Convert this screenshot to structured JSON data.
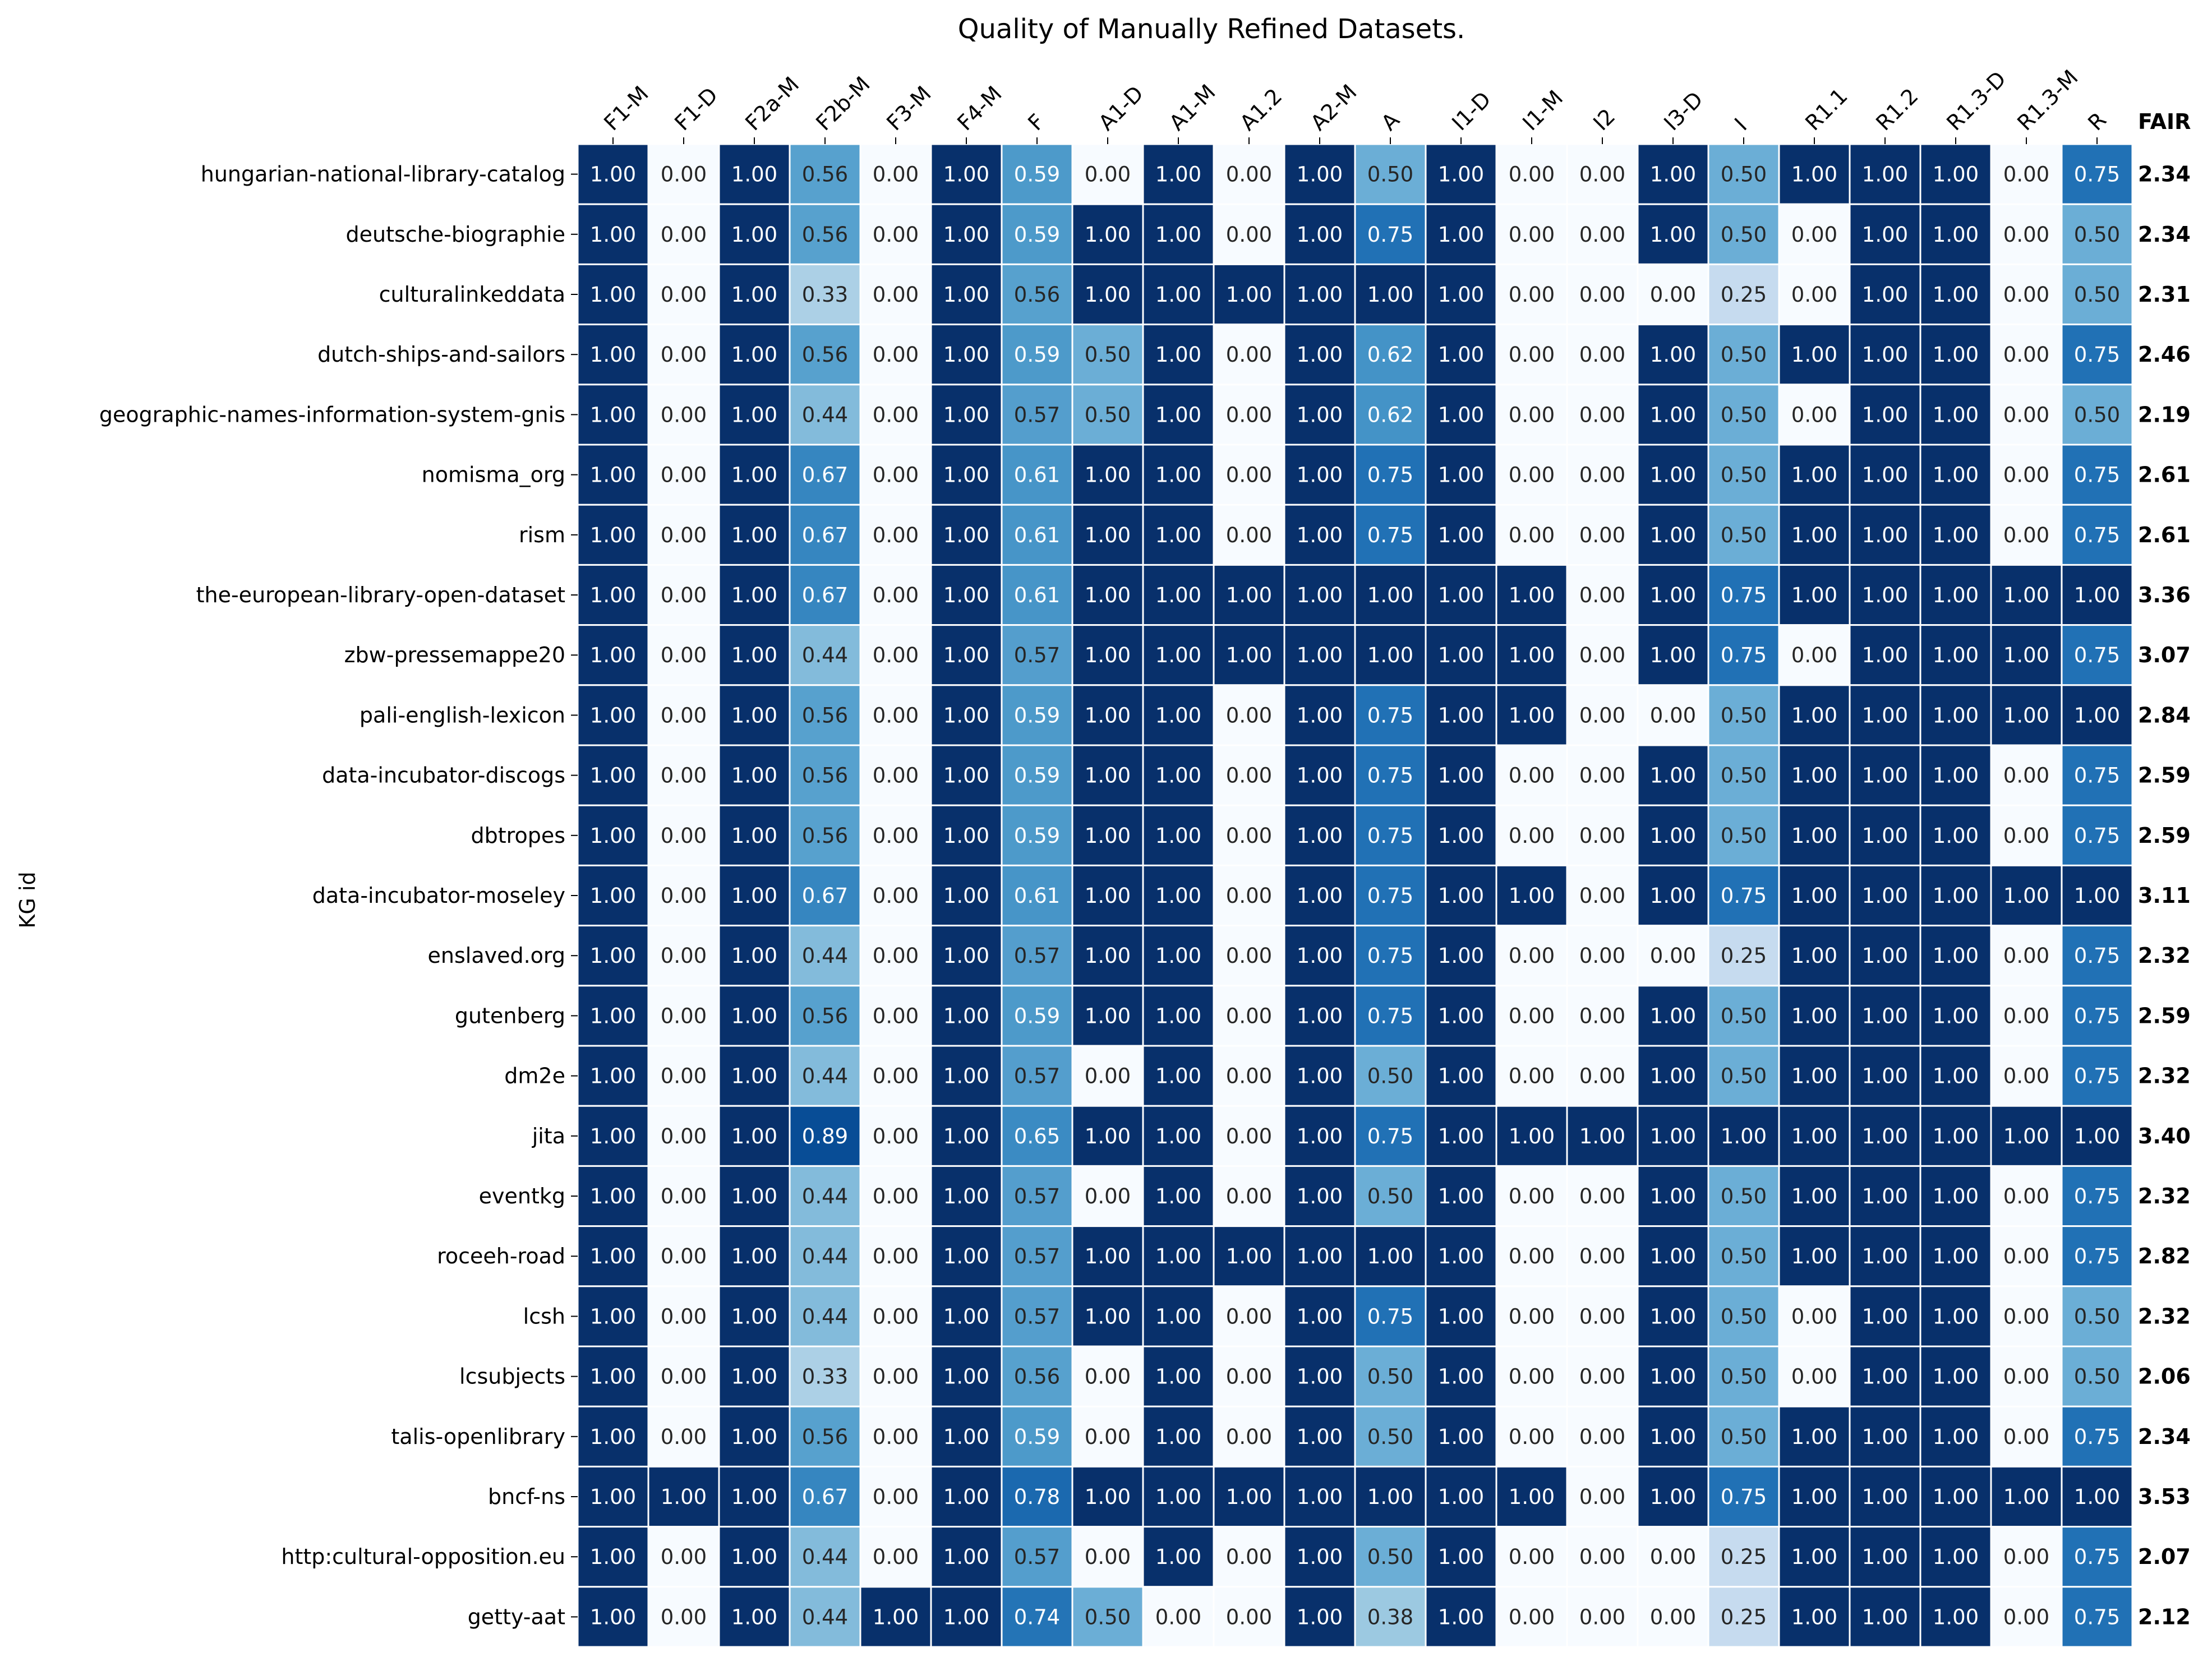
{
  "chart_data": {
    "type": "heatmap",
    "title": "Quality of Manually Refined Datasets.",
    "ylabel": "KG id",
    "fair_header": "FAIR",
    "colormap": "Blues",
    "vmin": 0,
    "vmax": 1,
    "columns": [
      "F1-M",
      "F1-D",
      "F2a-M",
      "F2b-M",
      "F3-M",
      "F4-M",
      "F",
      "A1-D",
      "A1-M",
      "A1.2",
      "A2-M",
      "A",
      "I1-D",
      "I1-M",
      "I2",
      "I3-D",
      "I",
      "R1.1",
      "R1.2",
      "R1.3-D",
      "R1.3-M",
      "R"
    ],
    "rows": [
      {
        "name": "hungarian-national-library-catalog",
        "values": [
          1.0,
          0.0,
          1.0,
          0.56,
          0.0,
          1.0,
          0.59,
          0.0,
          1.0,
          0.0,
          1.0,
          0.5,
          1.0,
          0.0,
          0.0,
          1.0,
          0.5,
          1.0,
          1.0,
          1.0,
          0.0,
          0.75
        ],
        "fair": 2.34
      },
      {
        "name": "deutsche-biographie",
        "values": [
          1.0,
          0.0,
          1.0,
          0.56,
          0.0,
          1.0,
          0.59,
          1.0,
          1.0,
          0.0,
          1.0,
          0.75,
          1.0,
          0.0,
          0.0,
          1.0,
          0.5,
          0.0,
          1.0,
          1.0,
          0.0,
          0.5
        ],
        "fair": 2.34
      },
      {
        "name": "culturalinkeddata",
        "values": [
          1.0,
          0.0,
          1.0,
          0.33,
          0.0,
          1.0,
          0.56,
          1.0,
          1.0,
          1.0,
          1.0,
          1.0,
          1.0,
          0.0,
          0.0,
          0.0,
          0.25,
          0.0,
          1.0,
          1.0,
          0.0,
          0.5
        ],
        "fair": 2.31
      },
      {
        "name": "dutch-ships-and-sailors",
        "values": [
          1.0,
          0.0,
          1.0,
          0.56,
          0.0,
          1.0,
          0.59,
          0.5,
          1.0,
          0.0,
          1.0,
          0.62,
          1.0,
          0.0,
          0.0,
          1.0,
          0.5,
          1.0,
          1.0,
          1.0,
          0.0,
          0.75
        ],
        "fair": 2.46
      },
      {
        "name": "geographic-names-information-system-gnis",
        "values": [
          1.0,
          0.0,
          1.0,
          0.44,
          0.0,
          1.0,
          0.57,
          0.5,
          1.0,
          0.0,
          1.0,
          0.62,
          1.0,
          0.0,
          0.0,
          1.0,
          0.5,
          0.0,
          1.0,
          1.0,
          0.0,
          0.5
        ],
        "fair": 2.19
      },
      {
        "name": "nomisma_org",
        "values": [
          1.0,
          0.0,
          1.0,
          0.67,
          0.0,
          1.0,
          0.61,
          1.0,
          1.0,
          0.0,
          1.0,
          0.75,
          1.0,
          0.0,
          0.0,
          1.0,
          0.5,
          1.0,
          1.0,
          1.0,
          0.0,
          0.75
        ],
        "fair": 2.61
      },
      {
        "name": "rism",
        "values": [
          1.0,
          0.0,
          1.0,
          0.67,
          0.0,
          1.0,
          0.61,
          1.0,
          1.0,
          0.0,
          1.0,
          0.75,
          1.0,
          0.0,
          0.0,
          1.0,
          0.5,
          1.0,
          1.0,
          1.0,
          0.0,
          0.75
        ],
        "fair": 2.61
      },
      {
        "name": "the-european-library-open-dataset",
        "values": [
          1.0,
          0.0,
          1.0,
          0.67,
          0.0,
          1.0,
          0.61,
          1.0,
          1.0,
          1.0,
          1.0,
          1.0,
          1.0,
          1.0,
          0.0,
          1.0,
          0.75,
          1.0,
          1.0,
          1.0,
          1.0,
          1.0
        ],
        "fair": 3.36
      },
      {
        "name": "zbw-pressemappe20",
        "values": [
          1.0,
          0.0,
          1.0,
          0.44,
          0.0,
          1.0,
          0.57,
          1.0,
          1.0,
          1.0,
          1.0,
          1.0,
          1.0,
          1.0,
          0.0,
          1.0,
          0.75,
          0.0,
          1.0,
          1.0,
          1.0,
          0.75
        ],
        "fair": 3.07
      },
      {
        "name": "pali-english-lexicon",
        "values": [
          1.0,
          0.0,
          1.0,
          0.56,
          0.0,
          1.0,
          0.59,
          1.0,
          1.0,
          0.0,
          1.0,
          0.75,
          1.0,
          1.0,
          0.0,
          0.0,
          0.5,
          1.0,
          1.0,
          1.0,
          1.0,
          1.0
        ],
        "fair": 2.84
      },
      {
        "name": "data-incubator-discogs",
        "values": [
          1.0,
          0.0,
          1.0,
          0.56,
          0.0,
          1.0,
          0.59,
          1.0,
          1.0,
          0.0,
          1.0,
          0.75,
          1.0,
          0.0,
          0.0,
          1.0,
          0.5,
          1.0,
          1.0,
          1.0,
          0.0,
          0.75
        ],
        "fair": 2.59
      },
      {
        "name": "dbtropes",
        "values": [
          1.0,
          0.0,
          1.0,
          0.56,
          0.0,
          1.0,
          0.59,
          1.0,
          1.0,
          0.0,
          1.0,
          0.75,
          1.0,
          0.0,
          0.0,
          1.0,
          0.5,
          1.0,
          1.0,
          1.0,
          0.0,
          0.75
        ],
        "fair": 2.59
      },
      {
        "name": "data-incubator-moseley",
        "values": [
          1.0,
          0.0,
          1.0,
          0.67,
          0.0,
          1.0,
          0.61,
          1.0,
          1.0,
          0.0,
          1.0,
          0.75,
          1.0,
          1.0,
          0.0,
          1.0,
          0.75,
          1.0,
          1.0,
          1.0,
          1.0,
          1.0
        ],
        "fair": 3.11
      },
      {
        "name": "enslaved.org",
        "values": [
          1.0,
          0.0,
          1.0,
          0.44,
          0.0,
          1.0,
          0.57,
          1.0,
          1.0,
          0.0,
          1.0,
          0.75,
          1.0,
          0.0,
          0.0,
          0.0,
          0.25,
          1.0,
          1.0,
          1.0,
          0.0,
          0.75
        ],
        "fair": 2.32
      },
      {
        "name": "gutenberg",
        "values": [
          1.0,
          0.0,
          1.0,
          0.56,
          0.0,
          1.0,
          0.59,
          1.0,
          1.0,
          0.0,
          1.0,
          0.75,
          1.0,
          0.0,
          0.0,
          1.0,
          0.5,
          1.0,
          1.0,
          1.0,
          0.0,
          0.75
        ],
        "fair": 2.59
      },
      {
        "name": "dm2e",
        "values": [
          1.0,
          0.0,
          1.0,
          0.44,
          0.0,
          1.0,
          0.57,
          0.0,
          1.0,
          0.0,
          1.0,
          0.5,
          1.0,
          0.0,
          0.0,
          1.0,
          0.5,
          1.0,
          1.0,
          1.0,
          0.0,
          0.75
        ],
        "fair": 2.32
      },
      {
        "name": "jita",
        "values": [
          1.0,
          0.0,
          1.0,
          0.89,
          0.0,
          1.0,
          0.65,
          1.0,
          1.0,
          0.0,
          1.0,
          0.75,
          1.0,
          1.0,
          1.0,
          1.0,
          1.0,
          1.0,
          1.0,
          1.0,
          1.0,
          1.0
        ],
        "fair": 3.4
      },
      {
        "name": "eventkg",
        "values": [
          1.0,
          0.0,
          1.0,
          0.44,
          0.0,
          1.0,
          0.57,
          0.0,
          1.0,
          0.0,
          1.0,
          0.5,
          1.0,
          0.0,
          0.0,
          1.0,
          0.5,
          1.0,
          1.0,
          1.0,
          0.0,
          0.75
        ],
        "fair": 2.32
      },
      {
        "name": "roceeh-road",
        "values": [
          1.0,
          0.0,
          1.0,
          0.44,
          0.0,
          1.0,
          0.57,
          1.0,
          1.0,
          1.0,
          1.0,
          1.0,
          1.0,
          0.0,
          0.0,
          1.0,
          0.5,
          1.0,
          1.0,
          1.0,
          0.0,
          0.75
        ],
        "fair": 2.82
      },
      {
        "name": "lcsh",
        "values": [
          1.0,
          0.0,
          1.0,
          0.44,
          0.0,
          1.0,
          0.57,
          1.0,
          1.0,
          0.0,
          1.0,
          0.75,
          1.0,
          0.0,
          0.0,
          1.0,
          0.5,
          0.0,
          1.0,
          1.0,
          0.0,
          0.5
        ],
        "fair": 2.32
      },
      {
        "name": "lcsubjects",
        "values": [
          1.0,
          0.0,
          1.0,
          0.33,
          0.0,
          1.0,
          0.56,
          0.0,
          1.0,
          0.0,
          1.0,
          0.5,
          1.0,
          0.0,
          0.0,
          1.0,
          0.5,
          0.0,
          1.0,
          1.0,
          0.0,
          0.5
        ],
        "fair": 2.06
      },
      {
        "name": "talis-openlibrary",
        "values": [
          1.0,
          0.0,
          1.0,
          0.56,
          0.0,
          1.0,
          0.59,
          0.0,
          1.0,
          0.0,
          1.0,
          0.5,
          1.0,
          0.0,
          0.0,
          1.0,
          0.5,
          1.0,
          1.0,
          1.0,
          0.0,
          0.75
        ],
        "fair": 2.34
      },
      {
        "name": "bncf-ns",
        "values": [
          1.0,
          1.0,
          1.0,
          0.67,
          0.0,
          1.0,
          0.78,
          1.0,
          1.0,
          1.0,
          1.0,
          1.0,
          1.0,
          1.0,
          0.0,
          1.0,
          0.75,
          1.0,
          1.0,
          1.0,
          1.0,
          1.0
        ],
        "fair": 3.53
      },
      {
        "name": "http:cultural-opposition.eu",
        "values": [
          1.0,
          0.0,
          1.0,
          0.44,
          0.0,
          1.0,
          0.57,
          0.0,
          1.0,
          0.0,
          1.0,
          0.5,
          1.0,
          0.0,
          0.0,
          0.0,
          0.25,
          1.0,
          1.0,
          1.0,
          0.0,
          0.75
        ],
        "fair": 2.07
      },
      {
        "name": "getty-aat",
        "values": [
          1.0,
          0.0,
          1.0,
          0.44,
          1.0,
          1.0,
          0.74,
          0.5,
          0.0,
          0.0,
          1.0,
          0.38,
          1.0,
          0.0,
          0.0,
          0.0,
          0.25,
          1.0,
          1.0,
          1.0,
          0.0,
          0.75
        ],
        "fair": 2.12
      }
    ]
  }
}
